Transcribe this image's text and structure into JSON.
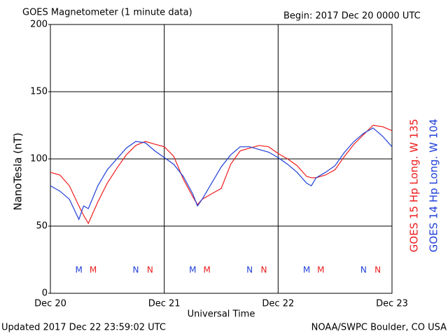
{
  "chart_data": {
    "type": "line",
    "title": "GOES Magnetometer (1 minute data)",
    "subtitle": "Begin:  2017 Dec 20 0000 UTC",
    "y_label": "NanoTesla (nT)",
    "x_label": "Universal Time",
    "footer_left": "Updated 2017 Dec 22 23:59:02 UTC",
    "footer_right": "NOAA/SWPC Boulder, CO USA",
    "x": [
      0,
      2,
      4,
      6,
      7,
      8,
      10,
      12,
      14,
      16,
      18,
      20,
      22,
      24,
      26,
      28,
      30,
      31,
      32,
      34,
      36,
      38,
      40,
      42,
      44,
      46,
      48,
      50,
      52,
      54,
      55,
      56,
      58,
      60,
      62,
      64,
      66,
      68,
      70,
      72
    ],
    "series": [
      {
        "name": "GOES 15 Hp  Long. W 135",
        "color": "#ee1c1c",
        "values": [
          90,
          88,
          80,
          65,
          58,
          52,
          68,
          82,
          93,
          103,
          110,
          113,
          111,
          109,
          102,
          85,
          72,
          66,
          70,
          74,
          78,
          96,
          106,
          108,
          110,
          109,
          104,
          100,
          95,
          87,
          86,
          86,
          88,
          92,
          102,
          111,
          118,
          125,
          124,
          121
        ]
      },
      {
        "name": "GOES 14 Hp  Long. W 104",
        "color": "#1f3fd8",
        "values": [
          80,
          76,
          70,
          55,
          65,
          63,
          80,
          92,
          100,
          108,
          113,
          112,
          106,
          101,
          96,
          87,
          74,
          65,
          70,
          82,
          94,
          103,
          109,
          109,
          107,
          105,
          101,
          96,
          90,
          82,
          80,
          86,
          90,
          95,
          105,
          113,
          119,
          123,
          117,
          109
        ]
      }
    ],
    "markers": [
      {
        "label": "M",
        "x": 6,
        "color": "#1f3fd8"
      },
      {
        "label": "M",
        "x": 9,
        "color": "#ee1c1c"
      },
      {
        "label": "N",
        "x": 18,
        "color": "#1f3fd8"
      },
      {
        "label": "N",
        "x": 21,
        "color": "#ee1c1c"
      },
      {
        "label": "M",
        "x": 30,
        "color": "#1f3fd8"
      },
      {
        "label": "M",
        "x": 33,
        "color": "#ee1c1c"
      },
      {
        "label": "N",
        "x": 42,
        "color": "#1f3fd8"
      },
      {
        "label": "N",
        "x": 45,
        "color": "#ee1c1c"
      },
      {
        "label": "M",
        "x": 54,
        "color": "#1f3fd8"
      },
      {
        "label": "M",
        "x": 57,
        "color": "#ee1c1c"
      },
      {
        "label": "N",
        "x": 66,
        "color": "#1f3fd8"
      },
      {
        "label": "N",
        "x": 69,
        "color": "#ee1c1c"
      }
    ],
    "xlim": [
      0,
      72
    ],
    "xticks": [
      {
        "value": 0,
        "label": "Dec 20"
      },
      {
        "value": 24,
        "label": "Dec 21"
      },
      {
        "value": 48,
        "label": "Dec 22"
      },
      {
        "value": 72,
        "label": "Dec 23"
      }
    ],
    "ylim": [
      0,
      200
    ],
    "yticks": [
      0,
      50,
      100,
      150,
      200
    ],
    "grid": true
  }
}
